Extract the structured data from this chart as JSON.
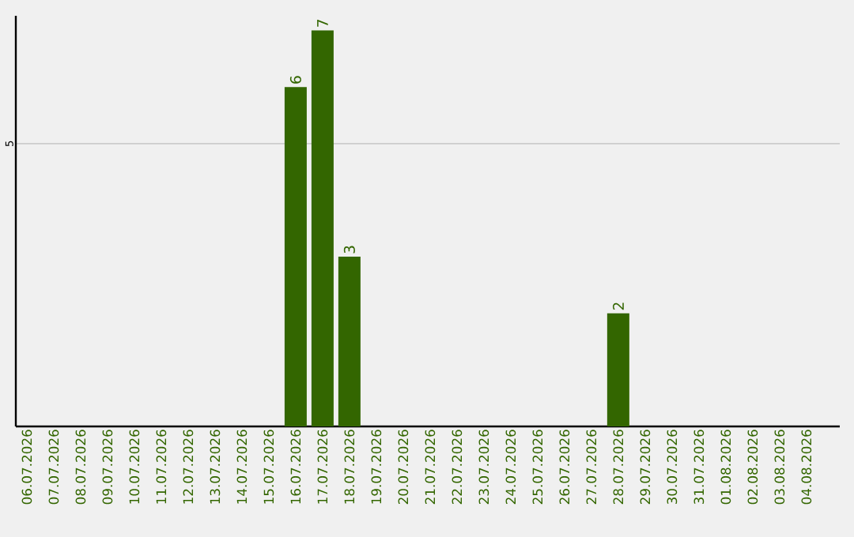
{
  "chart_data": {
    "type": "bar",
    "categories": [
      "06.07.2026",
      "07.07.2026",
      "08.07.2026",
      "09.07.2026",
      "10.07.2026",
      "11.07.2026",
      "12.07.2026",
      "13.07.2026",
      "14.07.2026",
      "15.07.2026",
      "16.07.2026",
      "17.07.2026",
      "18.07.2026",
      "19.07.2026",
      "20.07.2026",
      "21.07.2026",
      "22.07.2026",
      "23.07.2026",
      "24.07.2026",
      "25.07.2026",
      "26.07.2026",
      "27.07.2026",
      "28.07.2026",
      "29.07.2026",
      "30.07.2026",
      "31.07.2026",
      "01.08.2026",
      "02.08.2026",
      "03.08.2026",
      "04.08.2026"
    ],
    "values": [
      null,
      null,
      null,
      null,
      null,
      null,
      null,
      null,
      null,
      null,
      6,
      7,
      3,
      null,
      null,
      null,
      null,
      null,
      null,
      null,
      null,
      null,
      2,
      null,
      null,
      null,
      null,
      null,
      null,
      null
    ],
    "color": "#336600",
    "ylim": [
      0,
      7.26
    ],
    "yticks": [
      5
    ],
    "grid": "y",
    "data_labels": true
  }
}
